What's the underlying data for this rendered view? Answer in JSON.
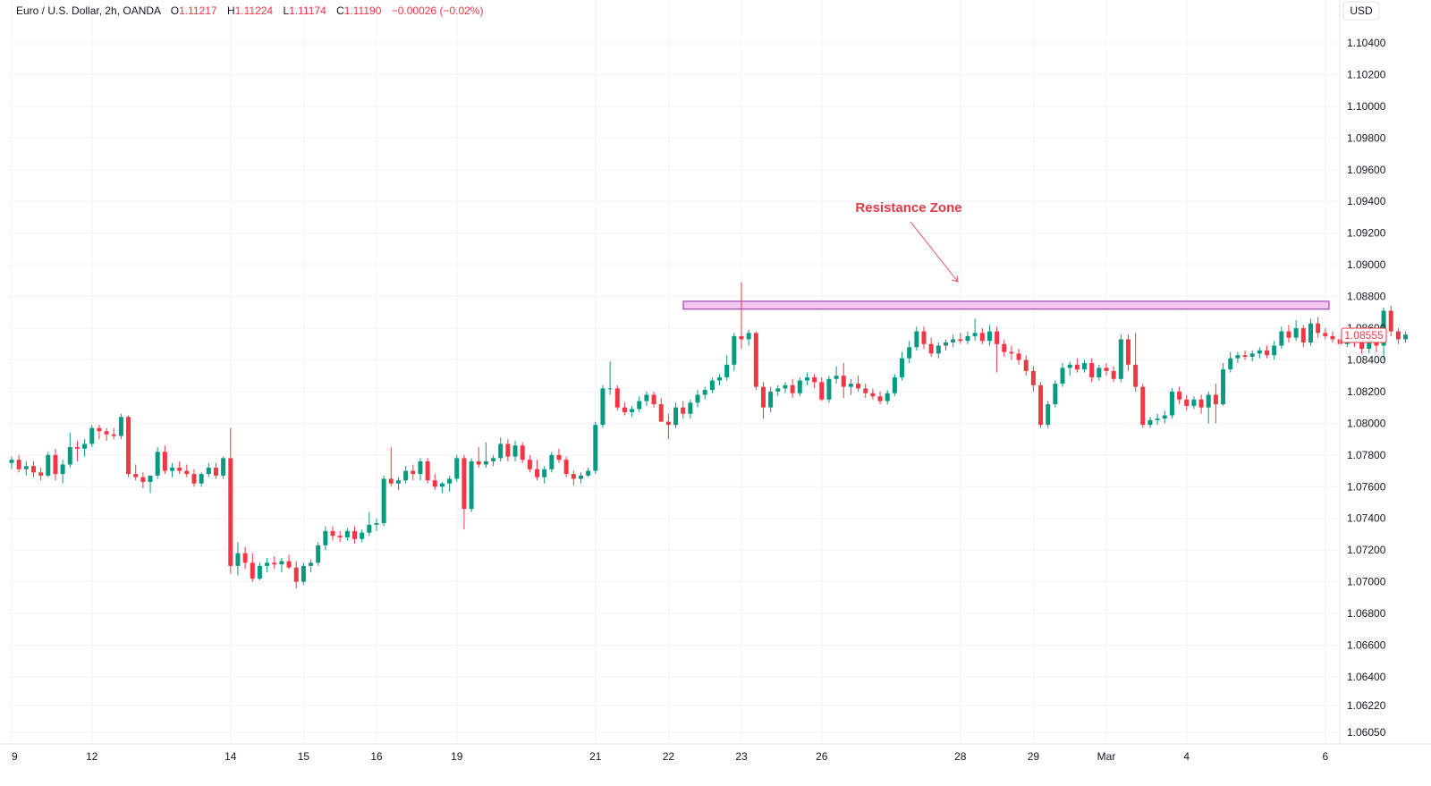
{
  "header": {
    "symbol": "Euro / U.S. Dollar, 2h, OANDA",
    "open_label": "O",
    "open": "1.11217",
    "high_label": "H",
    "high": "1.11224",
    "low_label": "L",
    "low": "1.11174",
    "close_label": "C",
    "close": "1.11190",
    "change": "−0.00026 (−0.02%)"
  },
  "currency_label": "USD",
  "last_price_label": "1.08555",
  "annotation": {
    "text": "Resistance Zone"
  },
  "colors": {
    "up": "#089981",
    "down": "#f23645",
    "zone_fill": "#f3c6f0",
    "zone_border": "#8e24aa",
    "annotation": "#e03a45",
    "grid": "#f0f3fa"
  },
  "chart_data": {
    "type": "candlestick",
    "ylim": [
      1.0605,
      1.1063
    ],
    "y_ticks": [
      "1.10400",
      "1.10200",
      "1.10000",
      "1.09800",
      "1.09600",
      "1.09400",
      "1.09200",
      "1.09000",
      "1.08800",
      "1.08600",
      "1.08400",
      "1.08200",
      "1.08000",
      "1.07800",
      "1.07600",
      "1.07400",
      "1.07200",
      "1.07000",
      "1.06800",
      "1.06600",
      "1.06400",
      "1.06220",
      "1.06050"
    ],
    "x_ticks": [
      {
        "label": "9",
        "bar": 0
      },
      {
        "label": "12",
        "bar": 11
      },
      {
        "label": "14",
        "bar": 30
      },
      {
        "label": "15",
        "bar": 40
      },
      {
        "label": "16",
        "bar": 50
      },
      {
        "label": "19",
        "bar": 61
      },
      {
        "label": "21",
        "bar": 80
      },
      {
        "label": "22",
        "bar": 90
      },
      {
        "label": "23",
        "bar": 100
      },
      {
        "label": "26",
        "bar": 111
      },
      {
        "label": "28",
        "bar": 130
      },
      {
        "label": "29",
        "bar": 140
      },
      {
        "label": "Mar",
        "bar": 150
      },
      {
        "label": "4",
        "bar": 161
      },
      {
        "label": "6",
        "bar": 180
      }
    ],
    "resistance_zone": {
      "from": 1.0872,
      "to": 1.0877,
      "start_bar": 92,
      "end_bar": 180
    },
    "candles": [
      [
        1.0775,
        1.0779,
        1.0771,
        1.0777
      ],
      [
        1.0777,
        1.078,
        1.0769,
        1.0771
      ],
      [
        1.0771,
        1.0776,
        1.0767,
        1.0773
      ],
      [
        1.0773,
        1.0776,
        1.0766,
        1.0769
      ],
      [
        1.0769,
        1.0772,
        1.0764,
        1.0767
      ],
      [
        1.0767,
        1.0782,
        1.0766,
        1.078
      ],
      [
        1.078,
        1.0784,
        1.0764,
        1.0768
      ],
      [
        1.0768,
        1.0777,
        1.0762,
        1.0774
      ],
      [
        1.0774,
        1.0794,
        1.0772,
        1.0785
      ],
      [
        1.0785,
        1.0789,
        1.0776,
        1.0784
      ],
      [
        1.0784,
        1.079,
        1.0779,
        1.0787
      ],
      [
        1.0787,
        1.0799,
        1.0785,
        1.0797
      ],
      [
        1.0797,
        1.0799,
        1.079,
        1.0795
      ],
      [
        1.0795,
        1.0797,
        1.0789,
        1.0793
      ],
      [
        1.0793,
        1.0797,
        1.079,
        1.0792
      ],
      [
        1.0792,
        1.0806,
        1.079,
        1.0804
      ],
      [
        1.0804,
        1.0805,
        1.0766,
        1.0768
      ],
      [
        1.0768,
        1.0774,
        1.0764,
        1.0766
      ],
      [
        1.0766,
        1.0769,
        1.0759,
        1.0763
      ],
      [
        1.0763,
        1.0767,
        1.0756,
        1.0767
      ],
      [
        1.0767,
        1.0785,
        1.0765,
        1.0782
      ],
      [
        1.0782,
        1.0786,
        1.0768,
        1.077
      ],
      [
        1.077,
        1.0775,
        1.0766,
        1.0772
      ],
      [
        1.0772,
        1.0776,
        1.0768,
        1.077
      ],
      [
        1.077,
        1.0774,
        1.0766,
        1.0768
      ],
      [
        1.0768,
        1.0771,
        1.076,
        1.0762
      ],
      [
        1.0762,
        1.0769,
        1.076,
        1.0768
      ],
      [
        1.0768,
        1.0775,
        1.0766,
        1.0772
      ],
      [
        1.0772,
        1.0775,
        1.0765,
        1.0767
      ],
      [
        1.0767,
        1.0779,
        1.0765,
        1.0778
      ],
      [
        1.0778,
        1.0797,
        1.0705,
        1.071
      ],
      [
        1.071,
        1.0725,
        1.0704,
        1.0718
      ],
      [
        1.0718,
        1.0722,
        1.0708,
        1.0712
      ],
      [
        1.0712,
        1.0718,
        1.07,
        1.0702
      ],
      [
        1.0702,
        1.0712,
        1.0701,
        1.071
      ],
      [
        1.071,
        1.0715,
        1.0706,
        1.0712
      ],
      [
        1.0712,
        1.0716,
        1.0708,
        1.0711
      ],
      [
        1.0711,
        1.0715,
        1.0706,
        1.0713
      ],
      [
        1.0713,
        1.0717,
        1.0708,
        1.0709
      ],
      [
        1.0709,
        1.0713,
        1.0696,
        1.07
      ],
      [
        1.07,
        1.0712,
        1.0698,
        1.071
      ],
      [
        1.071,
        1.0714,
        1.0706,
        1.0712
      ],
      [
        1.0712,
        1.0725,
        1.071,
        1.0723
      ],
      [
        1.0723,
        1.0735,
        1.072,
        1.0732
      ],
      [
        1.0732,
        1.0735,
        1.0726,
        1.0729
      ],
      [
        1.0729,
        1.0732,
        1.0725,
        1.0728
      ],
      [
        1.0728,
        1.0734,
        1.0726,
        1.0732
      ],
      [
        1.0732,
        1.0735,
        1.0724,
        1.0727
      ],
      [
        1.0727,
        1.0733,
        1.0725,
        1.0731
      ],
      [
        1.0731,
        1.0744,
        1.0729,
        1.0736
      ],
      [
        1.0736,
        1.074,
        1.0732,
        1.0737
      ],
      [
        1.0737,
        1.0767,
        1.0735,
        1.0765
      ],
      [
        1.0765,
        1.0785,
        1.076,
        1.0762
      ],
      [
        1.0762,
        1.0766,
        1.0758,
        1.0764
      ],
      [
        1.0764,
        1.0773,
        1.0762,
        1.077
      ],
      [
        1.077,
        1.0774,
        1.0764,
        1.0768
      ],
      [
        1.0768,
        1.0778,
        1.0764,
        1.0776
      ],
      [
        1.0776,
        1.0778,
        1.0762,
        1.0764
      ],
      [
        1.0764,
        1.0768,
        1.0758,
        1.076
      ],
      [
        1.076,
        1.0763,
        1.0756,
        1.0762
      ],
      [
        1.0762,
        1.0767,
        1.0757,
        1.0765
      ],
      [
        1.0765,
        1.078,
        1.0763,
        1.0778
      ],
      [
        1.0778,
        1.078,
        1.0733,
        1.0746
      ],
      [
        1.0746,
        1.0778,
        1.0744,
        1.0776
      ],
      [
        1.0776,
        1.0785,
        1.0772,
        1.0774
      ],
      [
        1.0774,
        1.0788,
        1.0772,
        1.0776
      ],
      [
        1.0776,
        1.078,
        1.0773,
        1.0778
      ],
      [
        1.0778,
        1.0791,
        1.0776,
        1.0787
      ],
      [
        1.0787,
        1.079,
        1.0776,
        1.0779
      ],
      [
        1.0779,
        1.0789,
        1.0776,
        1.0786
      ],
      [
        1.0786,
        1.0788,
        1.0775,
        1.0777
      ],
      [
        1.0777,
        1.078,
        1.0769,
        1.0771
      ],
      [
        1.0771,
        1.0777,
        1.0764,
        1.0766
      ],
      [
        1.0766,
        1.0773,
        1.0762,
        1.0771
      ],
      [
        1.0771,
        1.0782,
        1.0769,
        1.078
      ],
      [
        1.078,
        1.0784,
        1.0775,
        1.0777
      ],
      [
        1.0777,
        1.0779,
        1.0766,
        1.0768
      ],
      [
        1.0768,
        1.077,
        1.0761,
        1.0765
      ],
      [
        1.0765,
        1.0769,
        1.0762,
        1.0767
      ],
      [
        1.0767,
        1.0772,
        1.0766,
        1.077
      ],
      [
        1.077,
        1.0801,
        1.0768,
        1.0799
      ],
      [
        1.0799,
        1.0824,
        1.0797,
        1.0822
      ],
      [
        1.0822,
        1.0839,
        1.0818,
        1.0822
      ],
      [
        1.0822,
        1.0824,
        1.0808,
        1.081
      ],
      [
        1.081,
        1.0813,
        1.0805,
        1.0807
      ],
      [
        1.0807,
        1.0811,
        1.0804,
        1.0809
      ],
      [
        1.0809,
        1.0817,
        1.0807,
        1.0814
      ],
      [
        1.0814,
        1.082,
        1.0811,
        1.0818
      ],
      [
        1.0818,
        1.082,
        1.081,
        1.0812
      ],
      [
        1.0812,
        1.0816,
        1.0801,
        1.0801
      ],
      [
        1.0801,
        1.0806,
        1.079,
        1.0799
      ],
      [
        1.0799,
        1.0813,
        1.0797,
        1.081
      ],
      [
        1.081,
        1.0814,
        1.0803,
        1.0806
      ],
      [
        1.0806,
        1.0815,
        1.0803,
        1.0813
      ],
      [
        1.0813,
        1.0821,
        1.081,
        1.0818
      ],
      [
        1.0818,
        1.0823,
        1.0815,
        1.0821
      ],
      [
        1.0821,
        1.0829,
        1.0819,
        1.0827
      ],
      [
        1.0827,
        1.0831,
        1.0824,
        1.0829
      ],
      [
        1.0829,
        1.0843,
        1.0827,
        1.0837
      ],
      [
        1.0837,
        1.0857,
        1.0833,
        1.0855
      ],
      [
        1.0855,
        1.0889,
        1.0847,
        1.0853
      ],
      [
        1.0853,
        1.0859,
        1.0849,
        1.0857
      ],
      [
        1.0857,
        1.0858,
        1.0821,
        1.0823
      ],
      [
        1.0823,
        1.0826,
        1.0803,
        1.081
      ],
      [
        1.081,
        1.0823,
        1.0807,
        1.082
      ],
      [
        1.082,
        1.0824,
        1.0817,
        1.0822
      ],
      [
        1.0822,
        1.0826,
        1.0819,
        1.0824
      ],
      [
        1.0824,
        1.0828,
        1.0816,
        1.0819
      ],
      [
        1.0819,
        1.0829,
        1.0817,
        1.0827
      ],
      [
        1.0827,
        1.0832,
        1.0824,
        1.0829
      ],
      [
        1.0829,
        1.0831,
        1.0822,
        1.0826
      ],
      [
        1.0826,
        1.0829,
        1.0814,
        1.0815
      ],
      [
        1.0815,
        1.083,
        1.0813,
        1.0828
      ],
      [
        1.0828,
        1.0836,
        1.0825,
        1.083
      ],
      [
        1.083,
        1.0838,
        1.0816,
        1.0823
      ],
      [
        1.0823,
        1.0828,
        1.0818,
        1.0825
      ],
      [
        1.0825,
        1.083,
        1.082,
        1.0822
      ],
      [
        1.0822,
        1.0825,
        1.0816,
        1.0819
      ],
      [
        1.0819,
        1.0822,
        1.0815,
        1.0817
      ],
      [
        1.0817,
        1.082,
        1.0812,
        1.0814
      ],
      [
        1.0814,
        1.0821,
        1.0812,
        1.0819
      ],
      [
        1.0819,
        1.0831,
        1.0817,
        1.0829
      ],
      [
        1.0829,
        1.0845,
        1.0827,
        1.0841
      ],
      [
        1.0841,
        1.0852,
        1.0838,
        1.0848
      ],
      [
        1.0848,
        1.0861,
        1.0846,
        1.0858
      ],
      [
        1.0858,
        1.0861,
        1.0847,
        1.085
      ],
      [
        1.085,
        1.0854,
        1.0842,
        1.0844
      ],
      [
        1.0844,
        1.0851,
        1.0841,
        1.0849
      ],
      [
        1.0849,
        1.0853,
        1.0846,
        1.0851
      ],
      [
        1.0851,
        1.0856,
        1.0848,
        1.0853
      ],
      [
        1.0853,
        1.0857,
        1.085,
        1.0852
      ],
      [
        1.0852,
        1.0858,
        1.085,
        1.0855
      ],
      [
        1.0855,
        1.0866,
        1.0852,
        1.0857
      ],
      [
        1.0857,
        1.086,
        1.085,
        1.0852
      ],
      [
        1.0852,
        1.0862,
        1.0849,
        1.0858
      ],
      [
        1.0858,
        1.0861,
        1.0832,
        1.085
      ],
      [
        1.085,
        1.0853,
        1.0842,
        1.0845
      ],
      [
        1.0845,
        1.0849,
        1.084,
        1.0844
      ],
      [
        1.0844,
        1.0847,
        1.0837,
        1.084
      ],
      [
        1.084,
        1.0843,
        1.083,
        1.0833
      ],
      [
        1.0833,
        1.0836,
        1.082,
        1.0824
      ],
      [
        1.0824,
        1.0826,
        1.0797,
        1.0799
      ],
      [
        1.0799,
        1.0814,
        1.0797,
        1.0812
      ],
      [
        1.0812,
        1.0827,
        1.081,
        1.0825
      ],
      [
        1.0825,
        1.0838,
        1.0823,
        1.0835
      ],
      [
        1.0835,
        1.0839,
        1.083,
        1.0837
      ],
      [
        1.0837,
        1.0841,
        1.0832,
        1.0834
      ],
      [
        1.0834,
        1.084,
        1.0832,
        1.0838
      ],
      [
        1.0838,
        1.0841,
        1.0826,
        1.0829
      ],
      [
        1.0829,
        1.0837,
        1.0827,
        1.0835
      ],
      [
        1.0835,
        1.0838,
        1.083,
        1.0833
      ],
      [
        1.0833,
        1.0836,
        1.0826,
        1.0828
      ],
      [
        1.0828,
        1.0856,
        1.0826,
        1.0853
      ],
      [
        1.0853,
        1.0856,
        1.0833,
        1.0837
      ],
      [
        1.0837,
        1.0857,
        1.082,
        1.0823
      ],
      [
        1.0823,
        1.0825,
        1.0797,
        1.0799
      ],
      [
        1.0799,
        1.0804,
        1.0797,
        1.0802
      ],
      [
        1.0802,
        1.0806,
        1.0799,
        1.0803
      ],
      [
        1.0803,
        1.0808,
        1.08,
        1.0805
      ],
      [
        1.0805,
        1.0822,
        1.0803,
        1.082
      ],
      [
        1.082,
        1.0823,
        1.0812,
        1.0815
      ],
      [
        1.0815,
        1.0818,
        1.0808,
        1.0811
      ],
      [
        1.0811,
        1.0817,
        1.0809,
        1.0815
      ],
      [
        1.0815,
        1.0818,
        1.0806,
        1.081
      ],
      [
        1.081,
        1.082,
        1.08,
        1.0818
      ],
      [
        1.0818,
        1.0825,
        1.08,
        1.0812
      ],
      [
        1.0812,
        1.0838,
        1.0811,
        1.0834
      ],
      [
        1.0834,
        1.0845,
        1.0832,
        1.0841
      ],
      [
        1.0841,
        1.0845,
        1.0838,
        1.0843
      ],
      [
        1.0843,
        1.0846,
        1.084,
        1.0842
      ],
      [
        1.0842,
        1.0846,
        1.0839,
        1.0844
      ],
      [
        1.0844,
        1.0848,
        1.0841,
        1.0846
      ],
      [
        1.0846,
        1.0849,
        1.0841,
        1.0843
      ],
      [
        1.0843,
        1.0852,
        1.084,
        1.0849
      ],
      [
        1.0849,
        1.0861,
        1.0847,
        1.0858
      ],
      [
        1.0858,
        1.0862,
        1.0851,
        1.0854
      ],
      [
        1.0854,
        1.0865,
        1.0852,
        1.086
      ],
      [
        1.086,
        1.0862,
        1.0848,
        1.0851
      ],
      [
        1.0851,
        1.0866,
        1.0849,
        1.0863
      ],
      [
        1.0863,
        1.0867,
        1.0854,
        1.0857
      ],
      [
        1.0857,
        1.086,
        1.0853,
        1.0855
      ],
      [
        1.0855,
        1.0858,
        1.0851,
        1.0853
      ],
      [
        1.0853,
        1.0856,
        1.0848,
        1.085
      ],
      [
        1.085,
        1.0856,
        1.0848,
        1.0854
      ],
      [
        1.0854,
        1.0857,
        1.0848,
        1.0851
      ],
      [
        1.0851,
        1.0854,
        1.0844,
        1.0847
      ],
      [
        1.0847,
        1.0854,
        1.0844,
        1.0852
      ],
      [
        1.0852,
        1.0855,
        1.0845,
        1.0849
      ],
      [
        1.0849,
        1.0873,
        1.084,
        1.0871
      ],
      [
        1.0871,
        1.0874,
        1.0855,
        1.0858
      ],
      [
        1.0858,
        1.086,
        1.085,
        1.0853
      ],
      [
        1.0853,
        1.0858,
        1.0851,
        1.0856
      ]
    ]
  }
}
